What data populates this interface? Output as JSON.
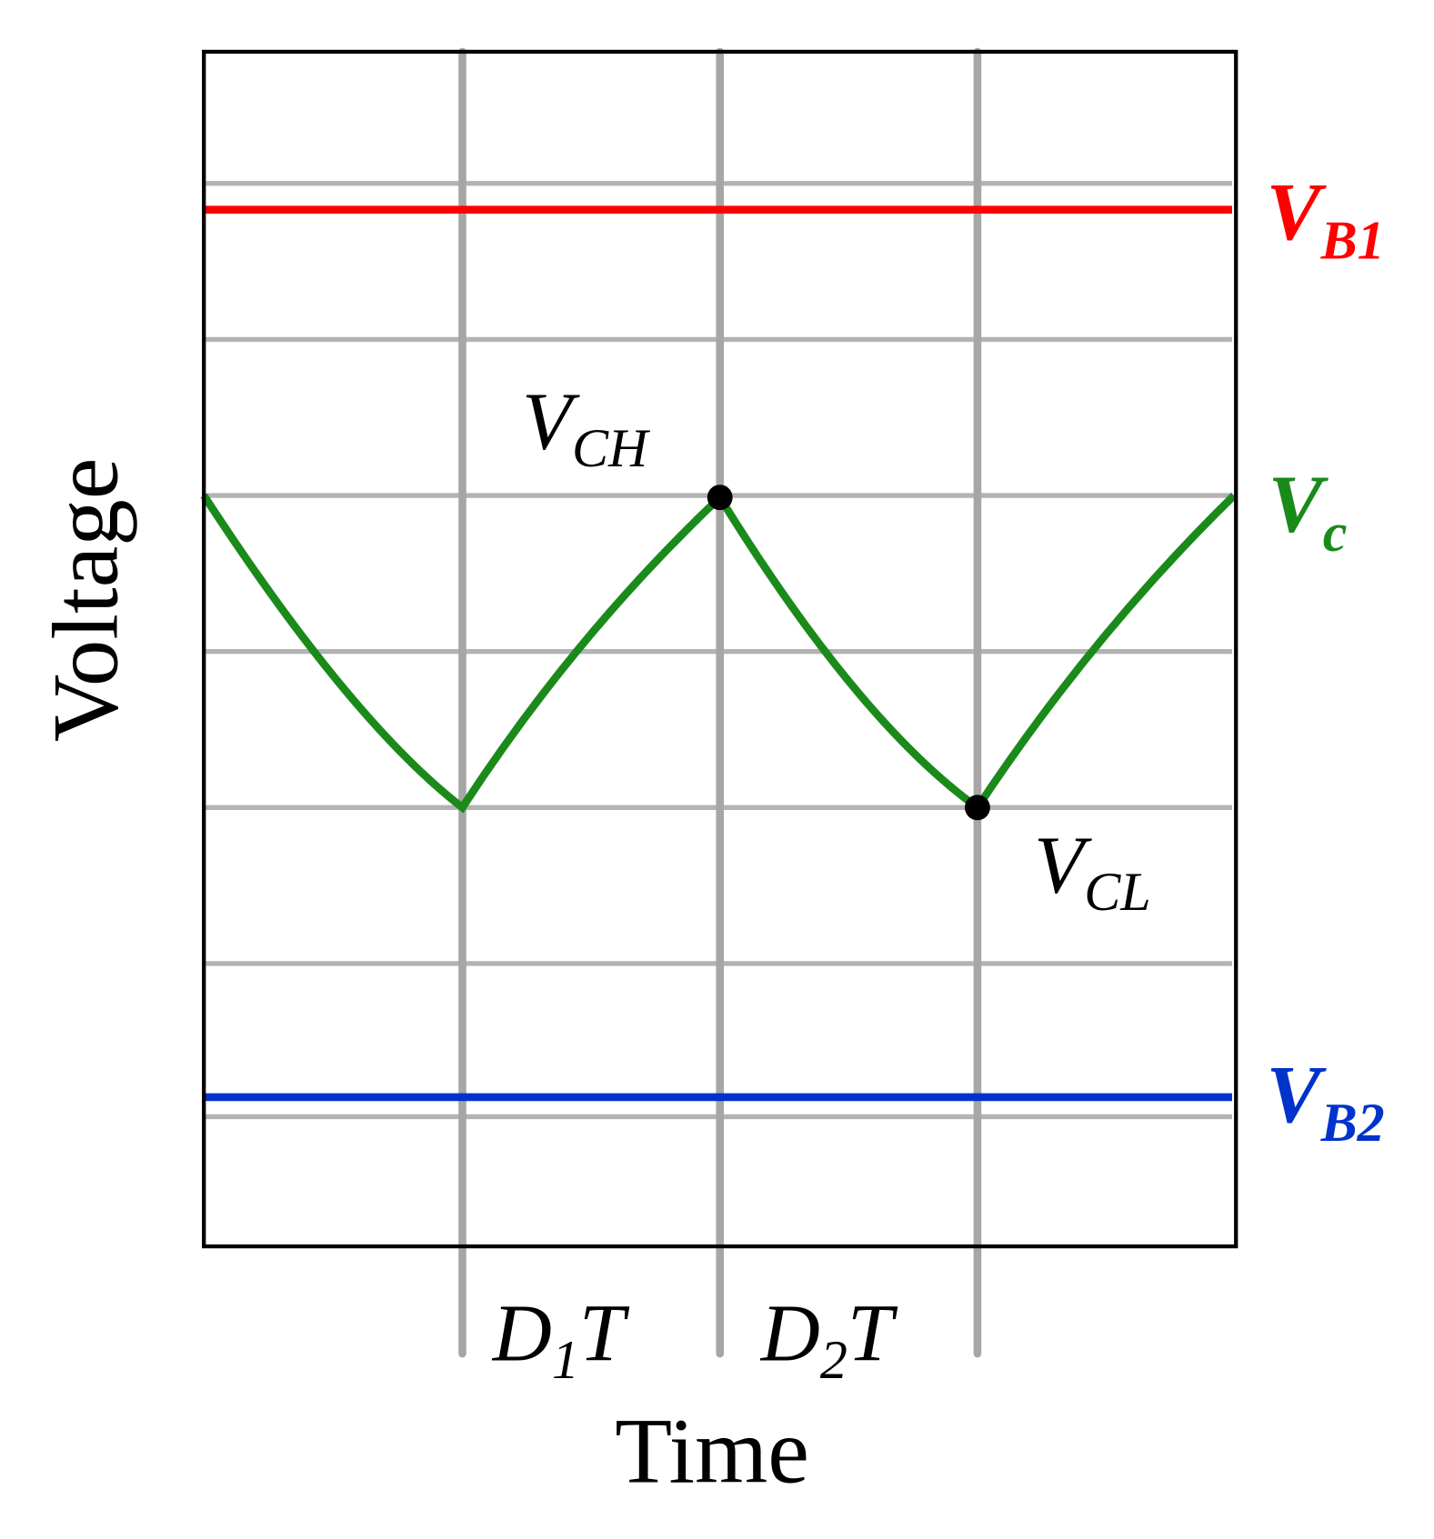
{
  "axes": {
    "y_label": "Voltage",
    "x_label": "Time"
  },
  "levels": [
    {
      "main": "V",
      "sub": "B1"
    },
    {
      "main": "V",
      "sub": "c"
    },
    {
      "main": "V",
      "sub": "B2"
    }
  ],
  "points": [
    {
      "main": "V",
      "sub": "CH"
    },
    {
      "main": "V",
      "sub": "CL"
    }
  ],
  "intervals": [
    {
      "main": "D",
      "sub": "1",
      "tail": "T"
    },
    {
      "main": "D",
      "sub": "2",
      "tail": "T"
    }
  ]
}
